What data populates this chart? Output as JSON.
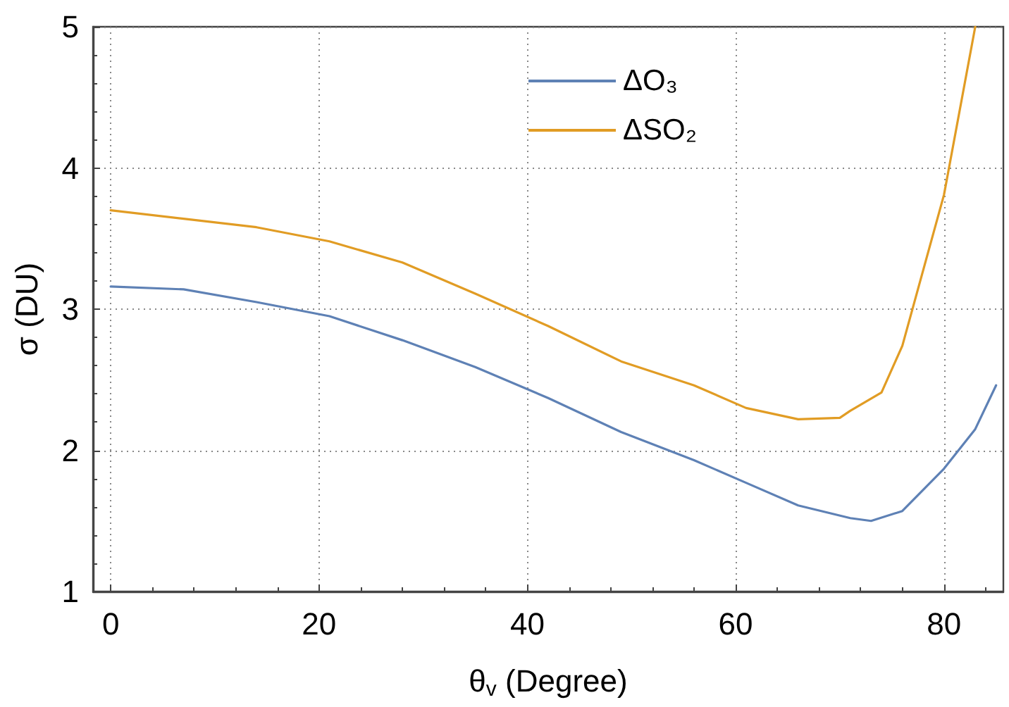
{
  "chart_data": {
    "type": "line",
    "xlabel": "θ$_{v}$ (Degree)",
    "ylabel": "σ (DU)",
    "xlim": [
      -1.7,
      85.7
    ],
    "xticks": [
      0,
      20,
      40,
      60,
      80
    ],
    "ylim": [
      1,
      5
    ],
    "yticks": [
      1,
      2,
      3,
      4,
      5
    ],
    "grid": true,
    "legend": "top",
    "marker": "none",
    "line_style": "solid",
    "series": [
      {
        "name": "ΔO₃",
        "color": "#5e81b5",
        "x": [
          0,
          7,
          14,
          21,
          28,
          35,
          42,
          49,
          56,
          61,
          66,
          71,
          73,
          76,
          80,
          83,
          85
        ],
        "values": [
          3.16,
          3.14,
          3.05,
          2.95,
          2.78,
          2.59,
          2.37,
          2.13,
          1.93,
          1.77,
          1.61,
          1.52,
          1.5,
          1.57,
          1.87,
          2.15,
          2.46
        ]
      },
      {
        "name": "ΔSO₂",
        "color": "#e19c24",
        "x": [
          0,
          7,
          14,
          21,
          28,
          35,
          42,
          49,
          56,
          61,
          66,
          70,
          71,
          74,
          76,
          80,
          83
        ],
        "values": [
          3.7,
          3.64,
          3.58,
          3.48,
          3.33,
          3.11,
          2.88,
          2.63,
          2.46,
          2.3,
          2.22,
          2.23,
          2.28,
          2.41,
          2.74,
          3.81,
          5.0
        ]
      }
    ]
  }
}
